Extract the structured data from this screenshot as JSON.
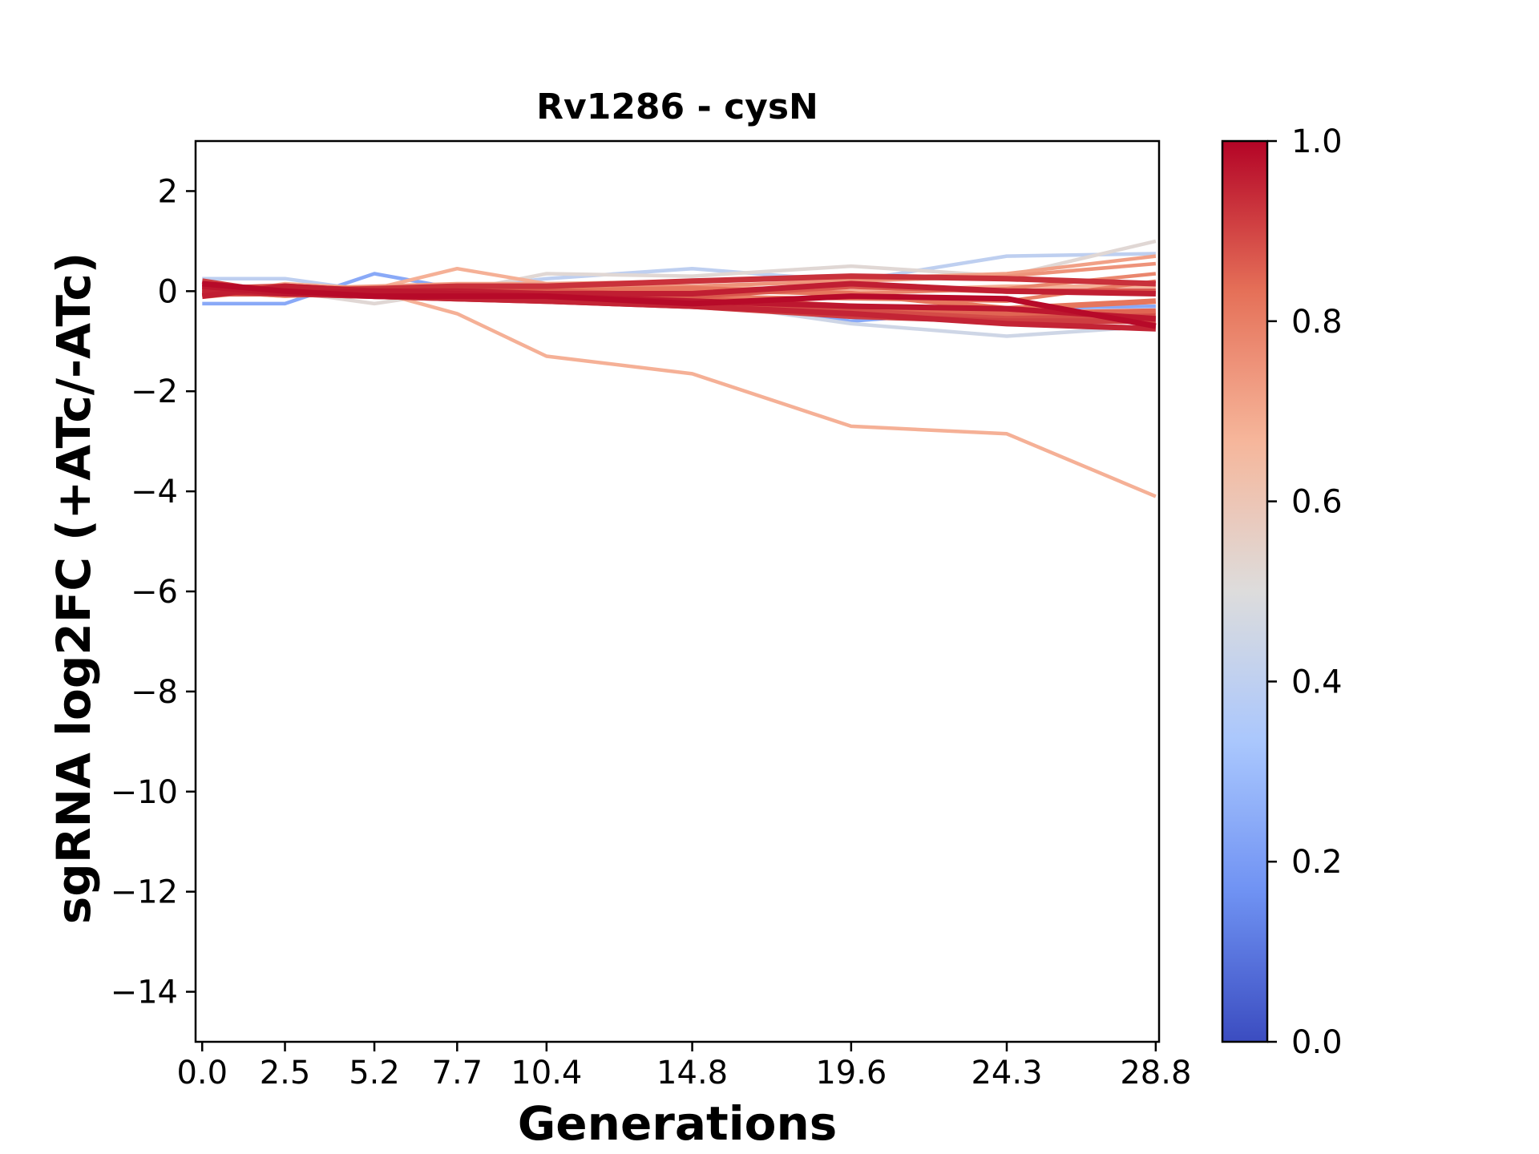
{
  "chart_data": {
    "type": "line",
    "title": "Rv1286 - cysN",
    "xlabel": "Generations",
    "ylabel": "sgRNA log2FC (+ATc/-ATc)",
    "x": [
      0.0,
      2.5,
      5.2,
      7.7,
      10.4,
      14.8,
      19.6,
      24.3,
      28.8
    ],
    "x_tick_labels": [
      "0.0",
      "2.5",
      "5.2",
      "7.7",
      "10.4",
      "14.8",
      "19.6",
      "24.3",
      "28.8"
    ],
    "xlim": [
      -0.2,
      28.9
    ],
    "ylim": [
      -15,
      3
    ],
    "y_ticks": [
      2,
      0,
      -2,
      -4,
      -6,
      -8,
      -10,
      -12,
      -14
    ],
    "y_tick_labels": [
      "2",
      "0",
      "−2",
      "−4",
      "−6",
      "−8",
      "−10",
      "−12",
      "−14"
    ],
    "grid": false,
    "legend": "none",
    "colormap": "coolwarm",
    "colorbar": {
      "range": [
        0.0,
        1.0
      ],
      "ticks": [
        0.0,
        0.2,
        0.4,
        0.6,
        0.8,
        1.0
      ],
      "tick_labels": [
        "0.0",
        "0.2",
        "0.4",
        "0.6",
        "0.8",
        "1.0"
      ],
      "stops": [
        "#3b4cc0",
        "#6f92f3",
        "#aac7fd",
        "#dddcdc",
        "#f6b69b",
        "#e57058",
        "#b40426"
      ]
    },
    "series": [
      {
        "color_value": 0.68,
        "values": [
          0.0,
          -0.1,
          0.0,
          -0.45,
          -1.3,
          -1.65,
          -2.7,
          -2.85,
          -4.1
        ]
      },
      {
        "color_value": 0.68,
        "values": [
          -0.1,
          0.15,
          0.05,
          0.45,
          0.15,
          0.1,
          0.0,
          0.1,
          0.1
        ]
      },
      {
        "color_value": 0.52,
        "values": [
          0.1,
          0.0,
          -0.25,
          0.0,
          0.35,
          0.3,
          0.5,
          0.3,
          1.0
        ]
      },
      {
        "color_value": 0.4,
        "values": [
          0.25,
          0.25,
          0.0,
          0.05,
          0.25,
          0.45,
          0.2,
          0.7,
          0.75
        ]
      },
      {
        "color_value": 0.24,
        "values": [
          -0.25,
          -0.25,
          0.35,
          0.05,
          0.0,
          -0.15,
          -0.6,
          -0.35,
          -0.3
        ]
      },
      {
        "color_value": 0.45,
        "values": [
          0.0,
          0.1,
          0.0,
          -0.1,
          -0.1,
          -0.2,
          -0.65,
          -0.9,
          -0.7
        ]
      },
      {
        "color_value": 0.72,
        "values": [
          0.05,
          0.05,
          0.1,
          0.15,
          0.15,
          0.2,
          0.25,
          0.35,
          0.7
        ]
      },
      {
        "color_value": 0.75,
        "values": [
          -0.05,
          0.0,
          -0.05,
          0.05,
          0.05,
          0.1,
          0.2,
          0.3,
          0.55
        ]
      },
      {
        "color_value": 0.78,
        "values": [
          0.1,
          0.05,
          0.0,
          0.0,
          0.0,
          0.0,
          -0.05,
          0.05,
          0.35
        ]
      },
      {
        "color_value": 0.8,
        "values": [
          0.0,
          -0.1,
          -0.05,
          -0.05,
          -0.05,
          -0.1,
          -0.15,
          -0.2,
          0.2
        ]
      },
      {
        "color_value": 0.82,
        "values": [
          -0.1,
          0.05,
          0.05,
          0.0,
          0.0,
          0.05,
          -0.05,
          -0.35,
          -0.2
        ]
      },
      {
        "color_value": 0.85,
        "values": [
          0.15,
          0.0,
          -0.05,
          -0.1,
          -0.1,
          -0.15,
          -0.3,
          -0.45,
          -0.4
        ]
      },
      {
        "color_value": 0.87,
        "values": [
          -0.05,
          -0.05,
          0.0,
          0.05,
          0.0,
          -0.1,
          0.1,
          0.0,
          0.0
        ]
      },
      {
        "color_value": 0.89,
        "values": [
          0.05,
          0.1,
          0.0,
          0.0,
          -0.05,
          -0.2,
          -0.4,
          -0.55,
          -0.5
        ]
      },
      {
        "color_value": 0.91,
        "values": [
          0.2,
          -0.05,
          -0.1,
          -0.15,
          -0.2,
          -0.3,
          -0.5,
          -0.6,
          -0.6
        ]
      },
      {
        "color_value": 0.93,
        "values": [
          0.0,
          0.0,
          0.05,
          0.1,
          0.1,
          0.2,
          0.3,
          0.25,
          0.15
        ]
      },
      {
        "color_value": 0.95,
        "values": [
          0.0,
          -0.05,
          -0.1,
          -0.15,
          -0.2,
          -0.3,
          -0.45,
          -0.65,
          -0.75
        ]
      },
      {
        "color_value": 0.96,
        "values": [
          -0.1,
          0.1,
          0.0,
          0.0,
          -0.05,
          -0.05,
          0.15,
          0.0,
          -0.05
        ]
      },
      {
        "color_value": 0.97,
        "values": [
          0.1,
          -0.05,
          0.0,
          -0.05,
          -0.1,
          -0.2,
          -0.3,
          -0.35,
          -0.55
        ]
      },
      {
        "color_value": 0.99,
        "values": [
          0.15,
          0.0,
          -0.1,
          -0.1,
          -0.1,
          -0.25,
          -0.1,
          -0.15,
          -0.7
        ]
      }
    ]
  }
}
